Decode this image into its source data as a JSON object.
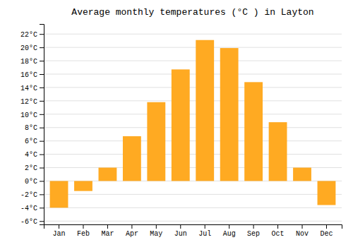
{
  "chart_data": {
    "type": "bar",
    "title": "Average monthly temperatures (°C ) in Layton",
    "categories": [
      "Jan",
      "Feb",
      "Mar",
      "Apr",
      "May",
      "Jun",
      "Jul",
      "Aug",
      "Sep",
      "Oct",
      "Nov",
      "Dec"
    ],
    "values": [
      -4.0,
      -1.5,
      2.0,
      6.7,
      11.8,
      16.7,
      21.1,
      19.9,
      14.8,
      8.8,
      2.0,
      -3.6
    ],
    "color": "#FFAA22",
    "ylim": [
      -6.5,
      23.5
    ],
    "yticks": [
      {
        "value": -6,
        "label": "-6°C"
      },
      {
        "value": -4,
        "label": "-4°C"
      },
      {
        "value": -2,
        "label": "-2°C"
      },
      {
        "value": 0,
        "label": "0°C"
      },
      {
        "value": 2,
        "label": "2°C"
      },
      {
        "value": 4,
        "label": "4°C"
      },
      {
        "value": 6,
        "label": "6°C"
      },
      {
        "value": 8,
        "label": "8°C"
      },
      {
        "value": 10,
        "label": "10°C"
      },
      {
        "value": 12,
        "label": "12°C"
      },
      {
        "value": 14,
        "label": "14°C"
      },
      {
        "value": 16,
        "label": "16°C"
      },
      {
        "value": 18,
        "label": "18°C"
      },
      {
        "value": 20,
        "label": "20°C"
      },
      {
        "value": 22,
        "label": "22°C"
      }
    ],
    "grid": true
  }
}
